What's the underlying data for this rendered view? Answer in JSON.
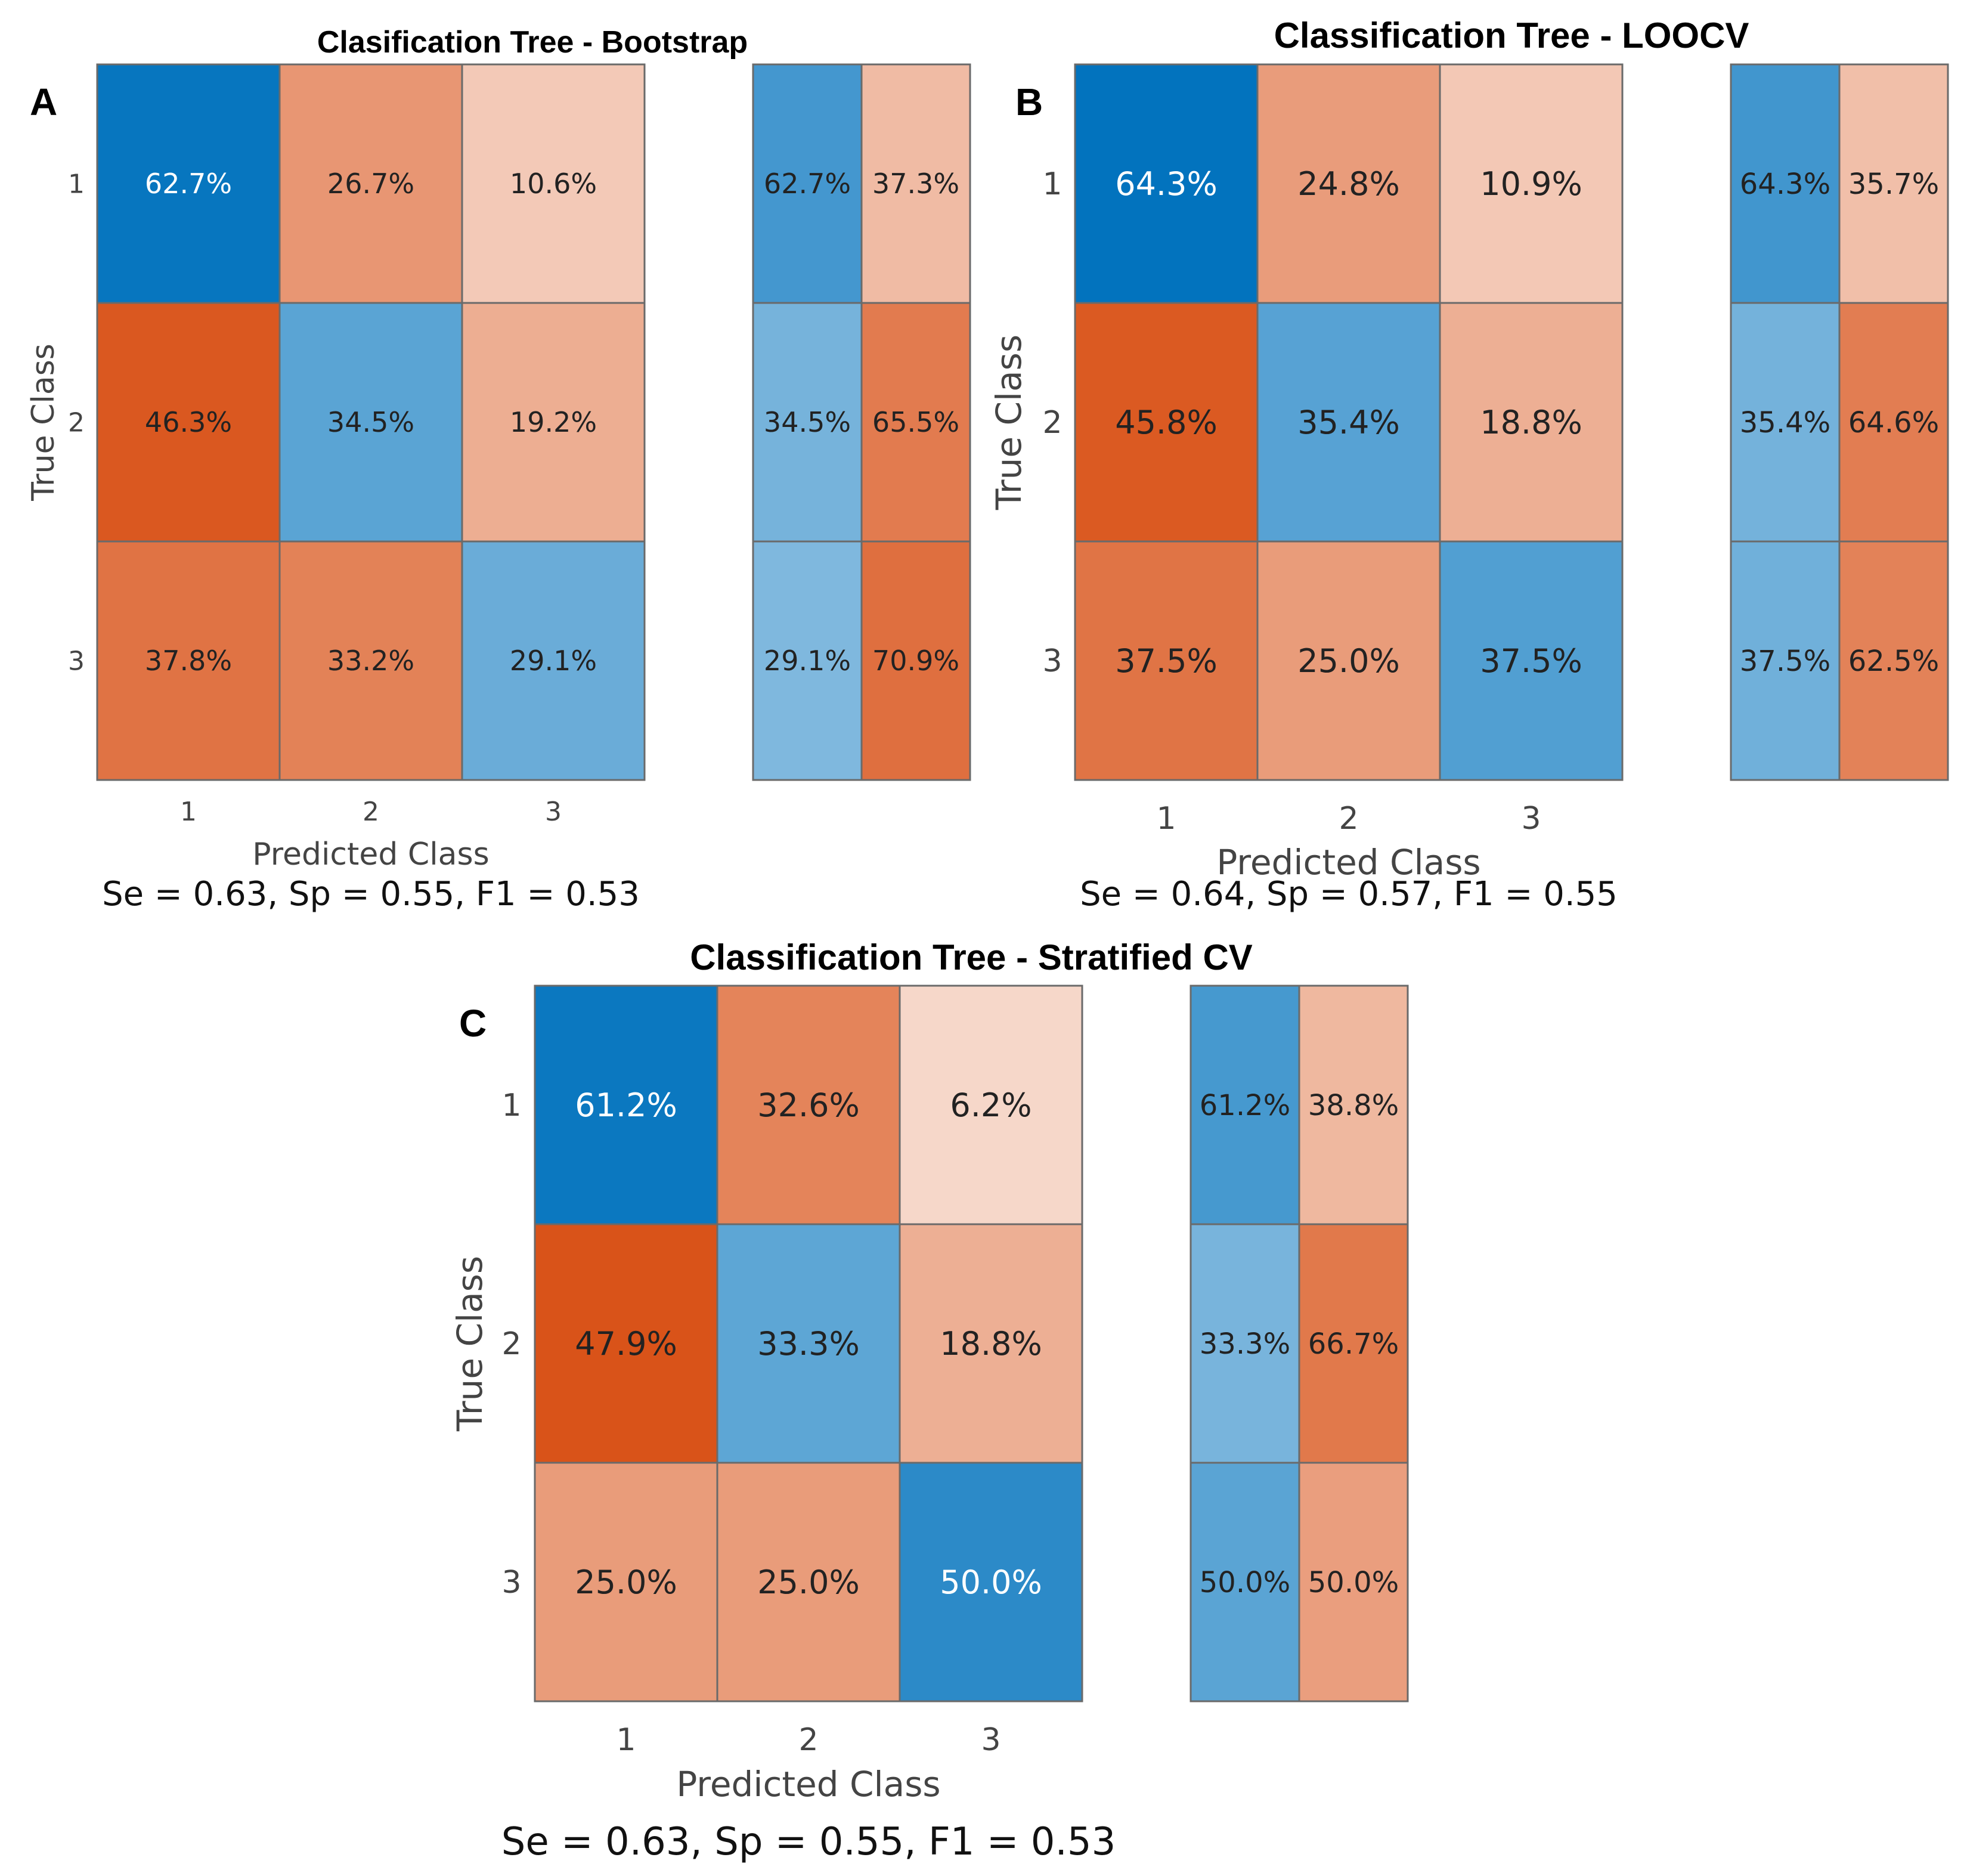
{
  "chart_data": [
    {
      "type": "heatmap",
      "panel_label": "A",
      "title": "Clasification Tree - Bootstrap",
      "xlabel": "Predicted Class",
      "ylabel": "True Class",
      "x_ticks": [
        "1",
        "2",
        "3"
      ],
      "y_ticks": [
        "1",
        "2",
        "3"
      ],
      "matrix_labels": [
        [
          "62.7%",
          "26.7%",
          "10.6%"
        ],
        [
          "46.3%",
          "34.5%",
          "19.2%"
        ],
        [
          "37.8%",
          "33.2%",
          "29.1%"
        ]
      ],
      "matrix_values": [
        [
          62.7,
          26.7,
          10.6
        ],
        [
          46.3,
          34.5,
          19.2
        ],
        [
          37.8,
          33.2,
          29.1
        ]
      ],
      "summary_labels": [
        [
          "62.7%",
          "37.3%"
        ],
        [
          "34.5%",
          "65.5%"
        ],
        [
          "29.1%",
          "70.9%"
        ]
      ],
      "summary_values": [
        [
          62.7,
          37.3
        ],
        [
          34.5,
          65.5
        ],
        [
          29.1,
          70.9
        ]
      ],
      "metrics": "Se = 0.63, Sp = 0.55, F1 = 0.53"
    },
    {
      "type": "heatmap",
      "panel_label": "B",
      "title": "Classification Tree - LOOCV",
      "xlabel": "Predicted Class",
      "ylabel": "True Class",
      "x_ticks": [
        "1",
        "2",
        "3"
      ],
      "y_ticks": [
        "1",
        "2",
        "3"
      ],
      "matrix_labels": [
        [
          "64.3%",
          "24.8%",
          "10.9%"
        ],
        [
          "45.8%",
          "35.4%",
          "18.8%"
        ],
        [
          "37.5%",
          "25.0%",
          "37.5%"
        ]
      ],
      "matrix_values": [
        [
          64.3,
          24.8,
          10.9
        ],
        [
          45.8,
          35.4,
          18.8
        ],
        [
          37.5,
          25.0,
          37.5
        ]
      ],
      "summary_labels": [
        [
          "64.3%",
          "35.7%"
        ],
        [
          "35.4%",
          "64.6%"
        ],
        [
          "37.5%",
          "62.5%"
        ]
      ],
      "summary_values": [
        [
          64.3,
          35.7
        ],
        [
          35.4,
          64.6
        ],
        [
          37.5,
          62.5
        ]
      ],
      "metrics": "Se = 0.64, Sp = 0.57, F1 = 0.55"
    },
    {
      "type": "heatmap",
      "panel_label": "C",
      "title": "Classification Tree - Stratified CV",
      "xlabel": "Predicted Class",
      "ylabel": "True Class",
      "x_ticks": [
        "1",
        "2",
        "3"
      ],
      "y_ticks": [
        "1",
        "2",
        "3"
      ],
      "matrix_labels": [
        [
          "61.2%",
          "32.6%",
          "6.2%"
        ],
        [
          "47.9%",
          "33.3%",
          "18.8%"
        ],
        [
          "25.0%",
          "25.0%",
          "50.0%"
        ]
      ],
      "matrix_values": [
        [
          61.2,
          32.6,
          6.2
        ],
        [
          47.9,
          33.3,
          18.8
        ],
        [
          25.0,
          25.0,
          50.0
        ]
      ],
      "summary_labels": [
        [
          "61.2%",
          "38.8%"
        ],
        [
          "33.3%",
          "66.7%"
        ],
        [
          "50.0%",
          "50.0%"
        ]
      ],
      "summary_values": [
        [
          61.2,
          38.8
        ],
        [
          33.3,
          66.7
        ],
        [
          50.0,
          50.0
        ]
      ],
      "metrics": "Se = 0.63, Sp = 0.55, F1 = 0.53"
    }
  ],
  "colors": {
    "correct_dark": "#0072bd",
    "correct_light": "#ffffff",
    "incorrect_dark": "#d95319",
    "incorrect_light": "#ffffff"
  }
}
